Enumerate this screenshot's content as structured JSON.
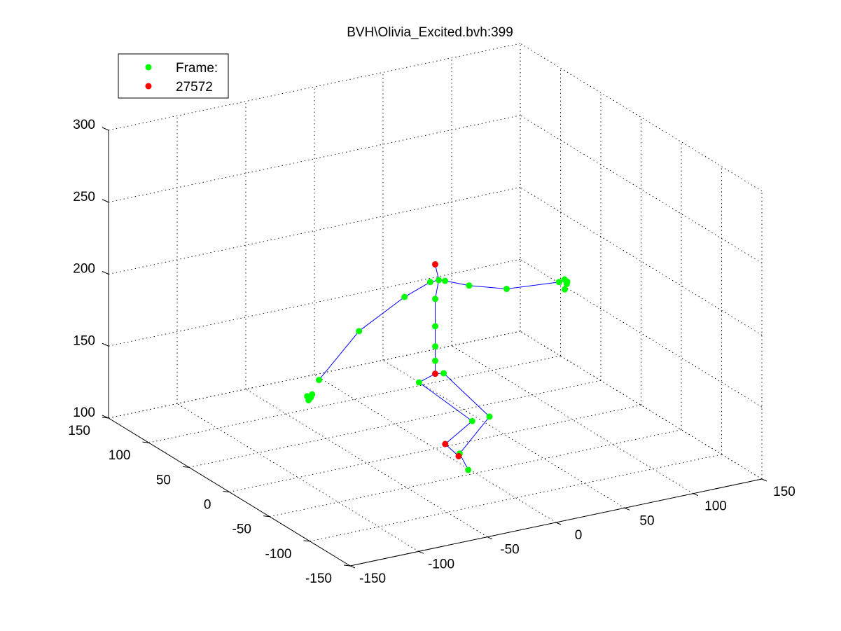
{
  "chart_data": {
    "type": "scatter",
    "title": "BVH\\Olivia_Excited.bvh:399",
    "legend": {
      "placement": "top-left",
      "entries": [
        {
          "label": "Frame:",
          "color": "#00ff00"
        },
        {
          "label": "27572",
          "color": "#ff0000"
        }
      ]
    },
    "grid": true,
    "axes": {
      "x": {
        "range": [
          -150,
          150
        ],
        "ticks": [
          -150,
          -100,
          -50,
          0,
          50,
          100,
          150
        ],
        "tick_labels": [
          "-150",
          "-100",
          "-50",
          "0",
          "50",
          "100",
          "150"
        ]
      },
      "y": {
        "range": [
          -150,
          150
        ],
        "ticks": [
          -150,
          -100,
          -50,
          0,
          50,
          100,
          150
        ],
        "tick_labels": [
          "-150",
          "-100",
          "-50",
          "0",
          "50",
          "100",
          "150"
        ]
      },
      "z": {
        "range": [
          100,
          300
        ],
        "ticks": [
          100,
          150,
          200,
          250,
          300
        ],
        "tick_labels": [
          "100",
          "150",
          "200",
          "250",
          "300"
        ]
      }
    },
    "colors": {
      "joint": "#00ff00",
      "highlight": "#ff0000",
      "bone": "#0000ff"
    },
    "joints": [
      {
        "id": "head",
        "x": 0,
        "y": 0,
        "z": 228,
        "color": "red"
      },
      {
        "id": "neck",
        "x": 2,
        "y": -1,
        "z": 217,
        "color": "green"
      },
      {
        "id": "spine3",
        "x": 0,
        "y": 0,
        "z": 204,
        "color": "green"
      },
      {
        "id": "spine2",
        "x": 0,
        "y": 0,
        "z": 185,
        "color": "green"
      },
      {
        "id": "spine1",
        "x": 0,
        "y": 0,
        "z": 171,
        "color": "green"
      },
      {
        "id": "spine0",
        "x": 0,
        "y": 0,
        "z": 161,
        "color": "green"
      },
      {
        "id": "hips",
        "x": 0,
        "y": 0,
        "z": 152,
        "color": "red"
      },
      {
        "id": "l_collar",
        "x": 6,
        "y": -2,
        "z": 216,
        "color": "green"
      },
      {
        "id": "l_shoulder",
        "x": 20,
        "y": -8,
        "z": 212,
        "color": "green"
      },
      {
        "id": "l_elbow",
        "x": 45,
        "y": -12,
        "z": 206,
        "color": "green"
      },
      {
        "id": "l_wrist",
        "x": 82,
        "y": -14,
        "z": 204,
        "color": "green"
      },
      {
        "id": "l_hand_1",
        "x": 86,
        "y": -14,
        "z": 205,
        "color": "green"
      },
      {
        "id": "l_hand_2",
        "x": 87,
        "y": -15,
        "z": 202,
        "color": "green"
      },
      {
        "id": "l_hand_3",
        "x": 85,
        "y": -16,
        "z": 199,
        "color": "green"
      },
      {
        "id": "l_hand_4",
        "x": 88,
        "y": -14,
        "z": 203,
        "color": "green"
      },
      {
        "id": "r_collar",
        "x": -3,
        "y": 1,
        "z": 216,
        "color": "green"
      },
      {
        "id": "r_shoulder",
        "x": -20,
        "y": 4,
        "z": 208,
        "color": "green"
      },
      {
        "id": "r_elbow",
        "x": -52,
        "y": 6,
        "z": 190,
        "color": "green"
      },
      {
        "id": "r_wrist",
        "x": -80,
        "y": 8,
        "z": 161,
        "color": "green"
      },
      {
        "id": "r_hand_1",
        "x": -86,
        "y": 8,
        "z": 150,
        "color": "green"
      },
      {
        "id": "r_hand_2",
        "x": -87,
        "y": 9,
        "z": 148,
        "color": "green"
      },
      {
        "id": "r_hand_3",
        "x": -85,
        "y": 8,
        "z": 152,
        "color": "green"
      },
      {
        "id": "r_hand_4",
        "x": -88,
        "y": 9,
        "z": 151,
        "color": "green"
      },
      {
        "id": "l_hip",
        "x": 5,
        "y": -2,
        "z": 152,
        "color": "green"
      },
      {
        "id": "l_knee",
        "x": 36,
        "y": -6,
        "z": 117,
        "color": "green"
      },
      {
        "id": "l_ankle",
        "x": 19,
        "y": 2,
        "z": 92,
        "color": "green"
      },
      {
        "id": "l_toe",
        "x": 27,
        "y": 5,
        "z": 78,
        "color": "green"
      },
      {
        "id": "r_hip",
        "x": -10,
        "y": 3,
        "z": 147,
        "color": "green"
      },
      {
        "id": "r_knee",
        "x": 24,
        "y": -5,
        "z": 116,
        "color": "green"
      },
      {
        "id": "r_ankle",
        "x": 12,
        "y": 8,
        "z": 98,
        "color": "red"
      },
      {
        "id": "r_toe",
        "x": 20,
        "y": 5,
        "z": 89,
        "color": "red"
      }
    ],
    "bones": [
      [
        "hips",
        "spine0"
      ],
      [
        "spine0",
        "spine1"
      ],
      [
        "spine1",
        "spine2"
      ],
      [
        "spine2",
        "spine3"
      ],
      [
        "spine3",
        "neck"
      ],
      [
        "neck",
        "head"
      ],
      [
        "neck",
        "l_collar"
      ],
      [
        "l_collar",
        "l_shoulder"
      ],
      [
        "l_shoulder",
        "l_elbow"
      ],
      [
        "l_elbow",
        "l_wrist"
      ],
      [
        "neck",
        "r_collar"
      ],
      [
        "r_collar",
        "r_shoulder"
      ],
      [
        "r_shoulder",
        "r_elbow"
      ],
      [
        "r_elbow",
        "r_wrist"
      ],
      [
        "hips",
        "l_hip"
      ],
      [
        "l_hip",
        "l_knee"
      ],
      [
        "l_knee",
        "l_ankle"
      ],
      [
        "l_ankle",
        "l_toe"
      ],
      [
        "hips",
        "r_hip"
      ],
      [
        "r_hip",
        "r_knee"
      ],
      [
        "r_knee",
        "r_ankle"
      ],
      [
        "r_ankle",
        "r_toe"
      ]
    ]
  }
}
